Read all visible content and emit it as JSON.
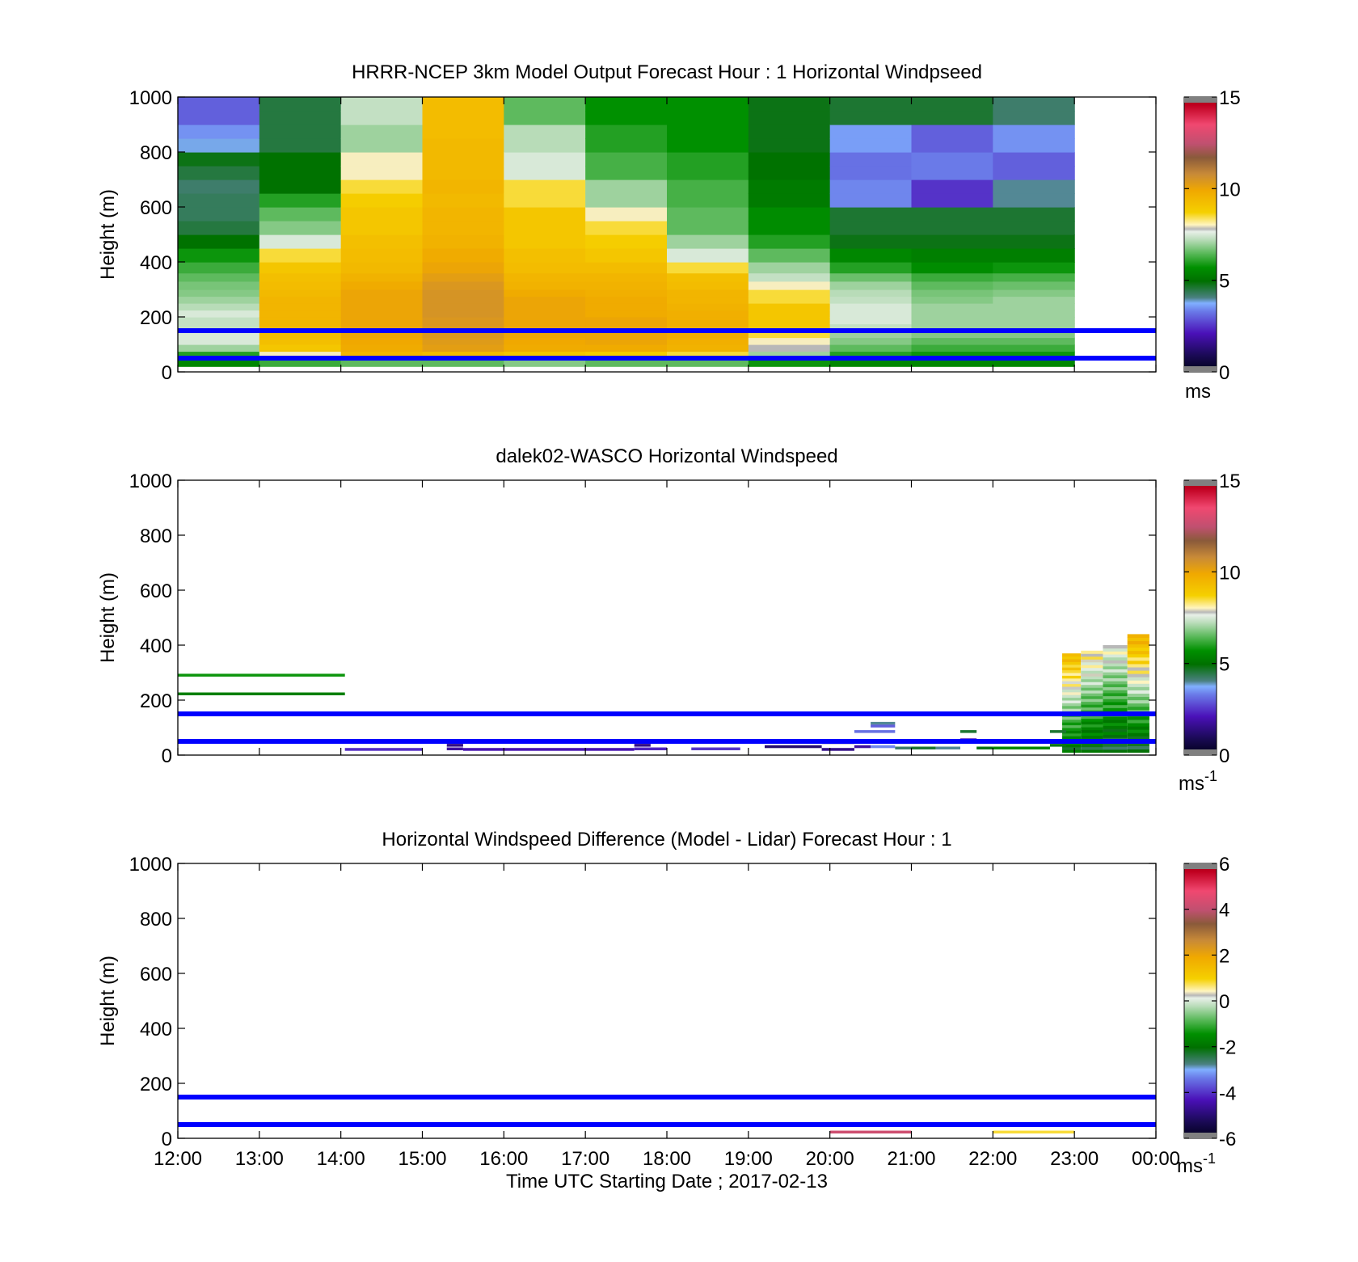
{
  "figure": {
    "xticks": [
      "12:00",
      "13:00",
      "14:00",
      "15:00",
      "16:00",
      "17:00",
      "18:00",
      "19:00",
      "20:00",
      "21:00",
      "22:00",
      "23:00",
      "00:00"
    ],
    "xlabel": "Time UTC  Starting Date ; 2017-02-13",
    "ylabel": "Height (m)",
    "yticks": [
      "0",
      "200",
      "400",
      "600",
      "800",
      "1000"
    ],
    "reference_lines_m": [
      50,
      150
    ],
    "reference_line_color": "#0000ff"
  },
  "chart_data": [
    {
      "type": "heatmap",
      "title": "HRRR-NCEP 3km Model Output   Forecast Hour : 1 Horizontal Windpseed",
      "xlabel": "",
      "ylabel": "Height (m)",
      "xlim": [
        12,
        24
      ],
      "ylim": [
        0,
        1000
      ],
      "colorbar": {
        "min": 0,
        "max": 15,
        "ticks": [
          "0",
          "5",
          "10",
          "15"
        ],
        "unit": "ms",
        "unit_sup": ""
      },
      "hour_starts": [
        12,
        13,
        14,
        15,
        16,
        17,
        18,
        19,
        20,
        21,
        22
      ],
      "height_levels_m": [
        20,
        45,
        75,
        100,
        125,
        150,
        175,
        200,
        225,
        250,
        275,
        300,
        330,
        360,
        400,
        450,
        500,
        550,
        600,
        650,
        700,
        750,
        800,
        850,
        900,
        950,
        1000
      ],
      "windspeed_ms": [
        [
          5.5,
          6.0,
          7.0,
          7.5,
          7.5,
          7.3,
          7.3,
          7.5,
          7.2,
          7.0,
          6.8,
          6.7,
          6.5,
          6.2,
          5.8,
          5.0,
          4.5,
          4.3,
          4.3,
          4.2,
          4.5,
          4.8,
          3.8,
          3.5,
          3.0,
          3.0
        ],
        [
          6.2,
          8.0,
          9.0,
          9.2,
          9.3,
          9.5,
          9.5,
          9.5,
          9.5,
          9.5,
          9.4,
          9.3,
          9.2,
          9.0,
          8.5,
          7.5,
          6.8,
          6.5,
          6.0,
          5.0,
          5.0,
          5.0,
          4.5,
          4.5,
          4.5,
          4.5
        ],
        [
          6.5,
          9.5,
          9.8,
          9.9,
          10.0,
          10.0,
          10.0,
          10.0,
          10.0,
          10.0,
          10.0,
          9.8,
          9.6,
          9.4,
          9.3,
          9.2,
          9.0,
          9.0,
          8.8,
          8.5,
          8.0,
          8.0,
          7.0,
          7.0,
          7.3,
          7.3
        ],
        [
          6.5,
          9.3,
          10.2,
          10.3,
          10.4,
          10.4,
          10.4,
          10.5,
          10.5,
          10.5,
          10.5,
          10.4,
          10.2,
          10.0,
          9.8,
          9.6,
          9.5,
          9.5,
          9.4,
          9.5,
          9.4,
          9.4,
          9.4,
          9.3,
          9.3,
          9.3
        ],
        [
          6.8,
          9.0,
          9.8,
          9.9,
          10.0,
          10.0,
          10.0,
          10.0,
          10.0,
          10.0,
          9.8,
          9.6,
          9.5,
          9.3,
          9.2,
          9.0,
          9.0,
          9.0,
          8.5,
          8.5,
          7.5,
          7.5,
          7.2,
          7.2,
          6.5,
          6.5
        ],
        [
          6.5,
          8.8,
          9.8,
          10.0,
          10.0,
          10.0,
          10.0,
          9.8,
          9.8,
          9.8,
          9.7,
          9.6,
          9.5,
          9.3,
          9.0,
          8.8,
          8.5,
          8.0,
          7.0,
          7.0,
          6.3,
          6.3,
          6.0,
          6.0,
          5.7,
          5.7
        ],
        [
          6.5,
          8.5,
          9.6,
          9.7,
          9.8,
          9.7,
          9.7,
          9.7,
          9.6,
          9.5,
          9.5,
          9.3,
          9.2,
          8.5,
          7.5,
          7.0,
          6.5,
          6.5,
          6.3,
          6.3,
          6.0,
          6.0,
          5.7,
          5.7,
          5.7,
          5.7
        ],
        [
          5.8,
          7.0,
          7.8,
          8.0,
          8.5,
          9.0,
          9.0,
          9.0,
          9.0,
          8.5,
          8.5,
          8.0,
          7.3,
          7.0,
          6.5,
          6.0,
          5.6,
          5.6,
          5.2,
          5.2,
          5.0,
          5.0,
          4.8,
          4.8,
          4.8,
          4.8
        ],
        [
          5.5,
          6.0,
          6.5,
          6.8,
          7.0,
          7.3,
          7.5,
          7.5,
          7.5,
          7.3,
          7.2,
          7.0,
          6.6,
          6.0,
          5.5,
          4.8,
          4.6,
          4.6,
          3.4,
          3.4,
          3.2,
          3.2,
          3.6,
          3.6,
          4.6,
          4.6
        ],
        [
          5.5,
          5.8,
          6.2,
          6.5,
          6.8,
          7.0,
          7.0,
          7.0,
          7.0,
          6.8,
          6.7,
          6.5,
          6.2,
          5.6,
          5.3,
          4.8,
          4.6,
          4.6,
          2.5,
          2.5,
          3.3,
          3.3,
          3.0,
          3.0,
          4.6,
          4.6
        ],
        [
          5.5,
          5.8,
          6.2,
          6.5,
          6.8,
          7.0,
          7.0,
          7.0,
          7.0,
          7.0,
          6.8,
          6.6,
          6.3,
          5.8,
          5.3,
          4.8,
          4.6,
          4.6,
          4.0,
          4.0,
          3.0,
          3.0,
          3.5,
          3.5,
          4.2,
          4.2
        ]
      ]
    },
    {
      "type": "heatmap",
      "title": "dalek02-WASCO  Horizontal Windspeed",
      "xlabel": "",
      "ylabel": "Height (m)",
      "xlim": [
        12,
        24
      ],
      "ylim": [
        0,
        1000
      ],
      "colorbar": {
        "min": 0,
        "max": 15,
        "ticks": [
          "0",
          "5",
          "10",
          "15"
        ],
        "unit": "ms",
        "unit_sup": "-1"
      },
      "segments": [
        {
          "t0": 12.0,
          "t1": 14.05,
          "h": 290,
          "v": 5.8
        },
        {
          "t0": 12.0,
          "t1": 14.05,
          "h": 222,
          "v": 5.3
        },
        {
          "t0": 14.05,
          "t1": 15.0,
          "h": 20,
          "v": 2.4
        },
        {
          "t0": 15.3,
          "t1": 15.5,
          "h": 35,
          "v": 1.5
        },
        {
          "t0": 15.3,
          "t1": 15.5,
          "h": 22,
          "v": 1.8
        },
        {
          "t0": 15.5,
          "t1": 17.6,
          "h": 20,
          "v": 2.0
        },
        {
          "t0": 17.6,
          "t1": 17.8,
          "h": 35,
          "v": 1.5
        },
        {
          "t0": 17.6,
          "t1": 18.0,
          "h": 22,
          "v": 2.3
        },
        {
          "t0": 18.3,
          "t1": 18.9,
          "h": 22,
          "v": 2.5
        },
        {
          "t0": 19.2,
          "t1": 19.9,
          "h": 30,
          "v": 1.2
        },
        {
          "t0": 19.9,
          "t1": 20.3,
          "h": 45,
          "v": 1.0
        },
        {
          "t0": 19.9,
          "t1": 20.3,
          "h": 20,
          "v": 1.5
        },
        {
          "t0": 20.3,
          "t1": 20.5,
          "h": 30,
          "v": 1.8
        },
        {
          "t0": 20.3,
          "t1": 20.8,
          "h": 85,
          "v": 3.2
        },
        {
          "t0": 20.5,
          "t1": 20.8,
          "h": 115,
          "v": 4.0
        },
        {
          "t0": 20.5,
          "t1": 20.8,
          "h": 105,
          "v": 3.0
        },
        {
          "t0": 20.5,
          "t1": 20.8,
          "h": 30,
          "v": 3.4
        },
        {
          "t0": 20.8,
          "t1": 21.0,
          "h": 25,
          "v": 4.2
        },
        {
          "t0": 21.0,
          "t1": 21.3,
          "h": 25,
          "v": 4.6
        },
        {
          "t0": 21.3,
          "t1": 21.6,
          "h": 25,
          "v": 4.0
        },
        {
          "t0": 21.6,
          "t1": 21.8,
          "h": 85,
          "v": 4.6
        },
        {
          "t0": 21.6,
          "t1": 21.8,
          "h": 55,
          "v": 2.0
        },
        {
          "t0": 21.8,
          "t1": 22.0,
          "h": 25,
          "v": 4.8
        },
        {
          "t0": 22.0,
          "t1": 22.7,
          "h": 25,
          "v": 5.5
        },
        {
          "t0": 22.7,
          "t1": 22.9,
          "h": 85,
          "v": 4.6
        },
        {
          "t0": 22.7,
          "t1": 22.9,
          "h": 35,
          "v": 4.8
        }
      ],
      "columns": [
        {
          "t0": 22.85,
          "t1": 23.08,
          "bottom": 10,
          "top": 370,
          "v_bottom": 4.8,
          "v_top": 9.3
        },
        {
          "t0": 23.08,
          "t1": 23.35,
          "bottom": 10,
          "top": 380,
          "v_bottom": 4.6,
          "v_top": 8.2
        },
        {
          "t0": 23.35,
          "t1": 23.65,
          "bottom": 10,
          "top": 400,
          "v_bottom": 4.4,
          "v_top": 7.8
        },
        {
          "t0": 23.65,
          "t1": 23.92,
          "bottom": 10,
          "top": 440,
          "v_bottom": 4.4,
          "v_top": 9.6
        }
      ]
    },
    {
      "type": "heatmap",
      "title": "Horizontal Windspeed Difference (Model - Lidar) Forecast Hour : 1",
      "xlabel": "Time UTC  Starting Date ; 2017-02-13",
      "ylabel": "Height (m)",
      "xlim": [
        12,
        24
      ],
      "ylim": [
        0,
        1000
      ],
      "colorbar": {
        "min": -6,
        "max": 6,
        "ticks": [
          "-6",
          "-4",
          "-2",
          "0",
          "2",
          "4",
          "6"
        ],
        "unit": "ms",
        "unit_sup": "-1"
      },
      "segments": [
        {
          "t0": 20.0,
          "t1": 21.0,
          "h": 22,
          "v": 4.2
        },
        {
          "t0": 22.0,
          "t1": 23.0,
          "h": 22,
          "v": 0.8
        }
      ]
    }
  ]
}
